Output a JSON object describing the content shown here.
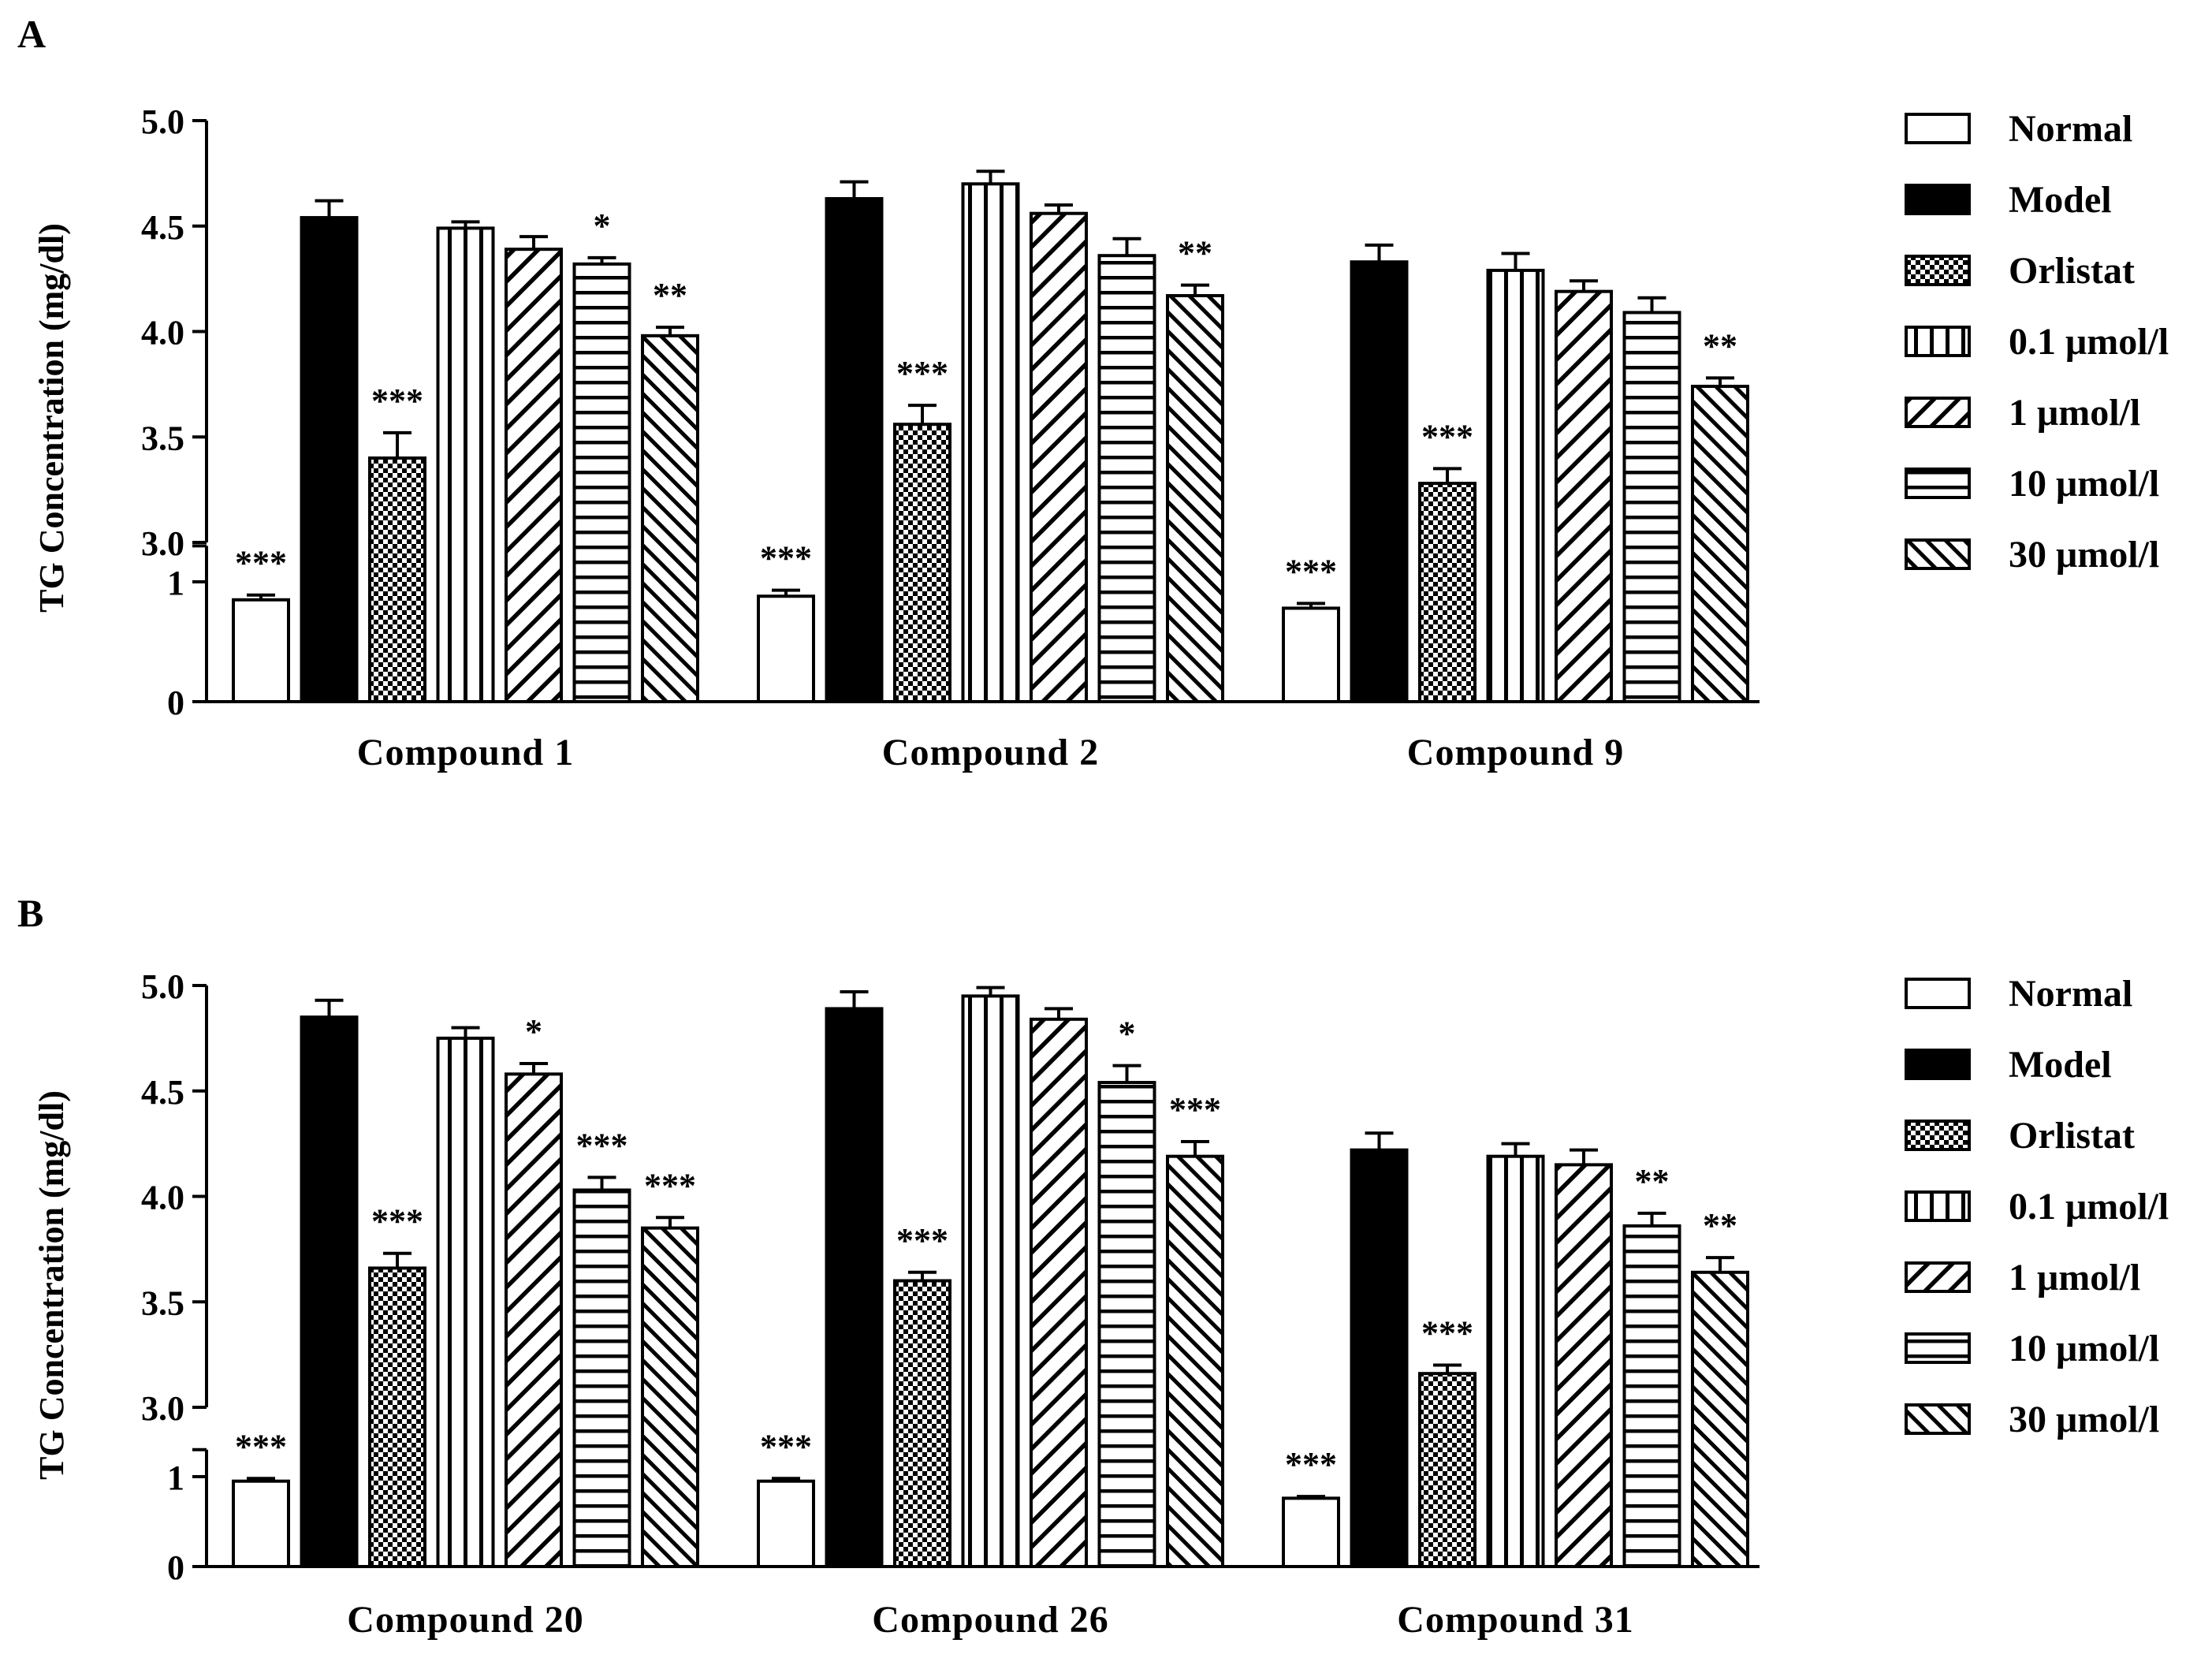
{
  "legend": [
    {
      "key": "normal",
      "label": "Normal"
    },
    {
      "key": "model",
      "label": "Model"
    },
    {
      "key": "orlistat",
      "label": "Orlistat"
    },
    {
      "key": "c01",
      "label": "0.1 μmol/l"
    },
    {
      "key": "c1",
      "label": "1 μmol/l"
    },
    {
      "key": "c10",
      "label": "10 μmol/l"
    },
    {
      "key": "c30",
      "label": "30 μmol/l"
    }
  ],
  "chart_data": [
    {
      "panel": "A",
      "type": "bar",
      "ylabel": "TG Concentration (mg/dl)",
      "y_lower_ticks": [
        "0",
        "1"
      ],
      "y_upper_ticks": [
        "3.0",
        "3.5",
        "4.0",
        "4.5",
        "5.0"
      ],
      "y_axis_break": [
        1.3,
        3.0
      ],
      "ylim": [
        0,
        5.0
      ],
      "categories": [
        "Compound 1",
        "Compound 2",
        "Compound 9"
      ],
      "series": [
        {
          "name": "Normal",
          "values": [
            0.85,
            0.88,
            0.78
          ],
          "errors": [
            0.04,
            0.05,
            0.04
          ],
          "sig": [
            "***",
            "***",
            "***"
          ]
        },
        {
          "name": "Model",
          "values": [
            4.54,
            4.63,
            4.33
          ],
          "errors": [
            0.08,
            0.08,
            0.08
          ],
          "sig": [
            "",
            "",
            ""
          ]
        },
        {
          "name": "Orlistat",
          "values": [
            3.4,
            3.56,
            3.28
          ],
          "errors": [
            0.12,
            0.09,
            0.07
          ],
          "sig": [
            "***",
            "***",
            "***"
          ]
        },
        {
          "name": "0.1 μmol/l",
          "values": [
            4.49,
            4.7,
            4.29
          ],
          "errors": [
            0.03,
            0.06,
            0.08
          ],
          "sig": [
            "",
            "",
            ""
          ]
        },
        {
          "name": "1 μmol/l",
          "values": [
            4.39,
            4.56,
            4.19
          ],
          "errors": [
            0.06,
            0.04,
            0.05
          ],
          "sig": [
            "",
            "",
            ""
          ]
        },
        {
          "name": "10 μmol/l",
          "values": [
            4.32,
            4.36,
            4.09
          ],
          "errors": [
            0.03,
            0.08,
            0.07
          ],
          "sig": [
            "*",
            "",
            ""
          ]
        },
        {
          "name": "30 μmol/l",
          "values": [
            3.98,
            4.17,
            3.74
          ],
          "errors": [
            0.04,
            0.05,
            0.04
          ],
          "sig": [
            "**",
            "**",
            "**"
          ]
        }
      ]
    },
    {
      "panel": "B",
      "type": "bar",
      "ylabel": "TG Concentration (mg/dl)",
      "y_lower_ticks": [
        "0",
        "1"
      ],
      "y_upper_ticks": [
        "3.0",
        "3.5",
        "4.0",
        "4.5",
        "5.0"
      ],
      "y_axis_break": [
        1.3,
        3.0
      ],
      "ylim": [
        0,
        5.0
      ],
      "categories": [
        "Compound 20",
        "Compound 26",
        "Compound 31"
      ],
      "series": [
        {
          "name": "Normal",
          "values": [
            0.95,
            0.95,
            0.76
          ],
          "errors": [
            0.03,
            0.03,
            0.02
          ],
          "sig": [
            "***",
            "***",
            "***"
          ]
        },
        {
          "name": "Model",
          "values": [
            4.85,
            4.89,
            4.22
          ],
          "errors": [
            0.08,
            0.08,
            0.08
          ],
          "sig": [
            "",
            "",
            ""
          ]
        },
        {
          "name": "Orlistat",
          "values": [
            3.66,
            3.6,
            3.16
          ],
          "errors": [
            0.07,
            0.04,
            0.04
          ],
          "sig": [
            "***",
            "***",
            "***"
          ]
        },
        {
          "name": "0.1 μmol/l",
          "values": [
            4.75,
            4.95,
            4.19
          ],
          "errors": [
            0.05,
            0.04,
            0.06
          ],
          "sig": [
            "",
            "",
            ""
          ]
        },
        {
          "name": "1 μmol/l",
          "values": [
            4.58,
            4.84,
            4.15
          ],
          "errors": [
            0.05,
            0.05,
            0.07
          ],
          "sig": [
            "*",
            "",
            ""
          ]
        },
        {
          "name": "10 μmol/l",
          "values": [
            4.03,
            4.54,
            3.86
          ],
          "errors": [
            0.06,
            0.08,
            0.06
          ],
          "sig": [
            "***",
            "*",
            "**"
          ]
        },
        {
          "name": "30 μmol/l",
          "values": [
            3.85,
            4.19,
            3.64
          ],
          "errors": [
            0.05,
            0.07,
            0.07
          ],
          "sig": [
            "***",
            "***",
            "**"
          ]
        }
      ]
    }
  ]
}
